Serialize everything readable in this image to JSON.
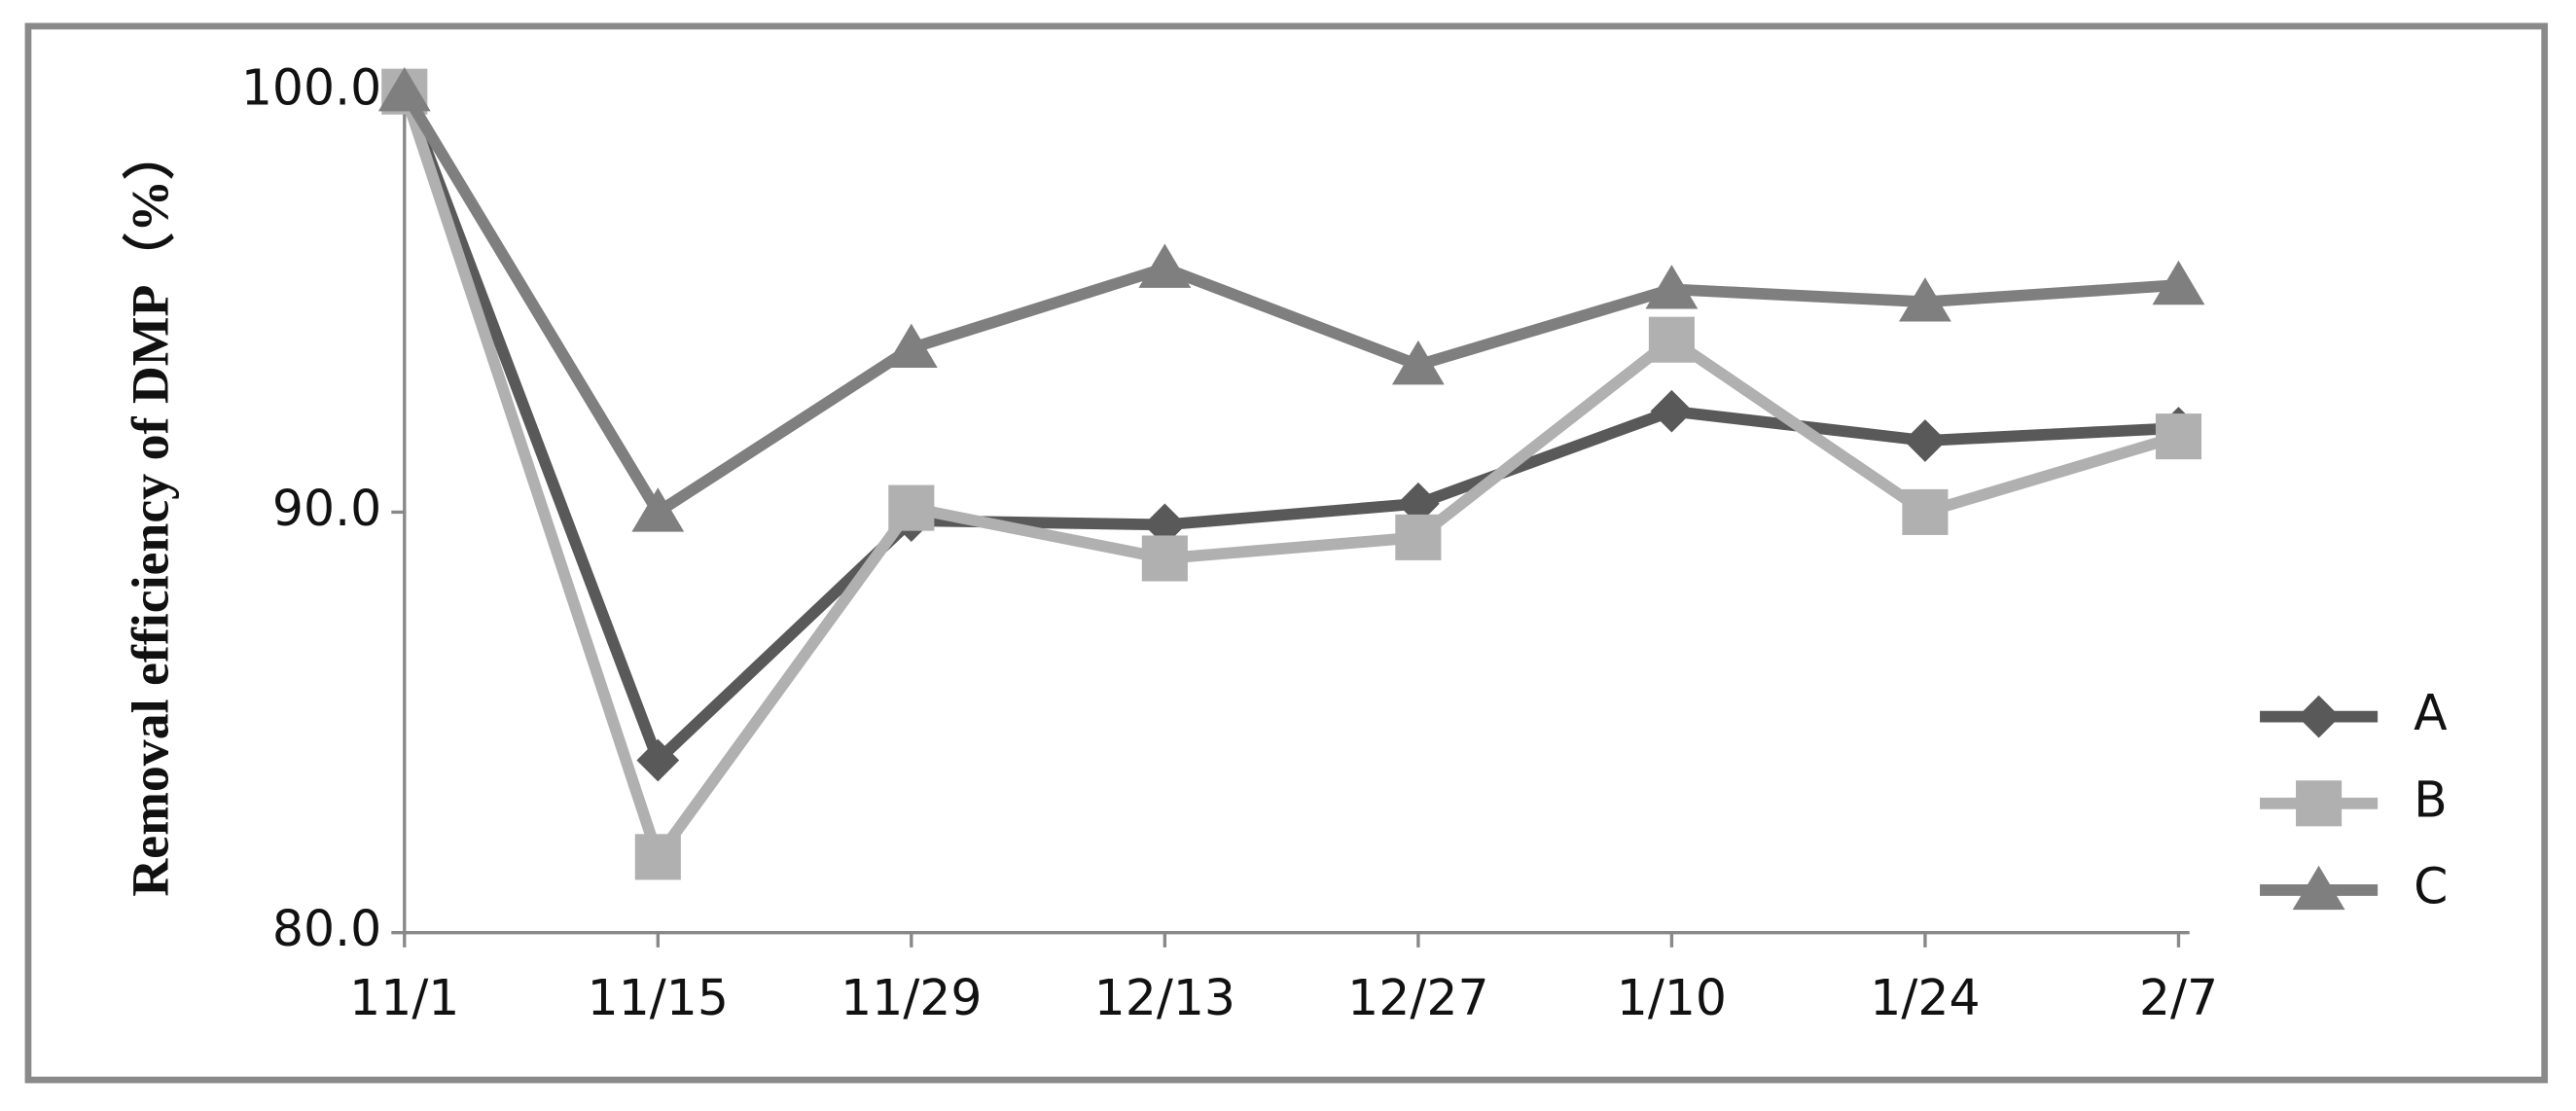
{
  "chart_data": {
    "type": "line",
    "y_label": "Removal efficiency of DMP（%）",
    "categories": [
      "11/1",
      "11/15",
      "11/29",
      "12/13",
      "12/27",
      "1/10",
      "1/24",
      "2/7"
    ],
    "series": [
      {
        "name": "A",
        "color": "#595959",
        "marker": "diamond",
        "values": [
          100,
          84.1,
          89.8,
          89.7,
          90.2,
          92.4,
          91.7,
          92.0
        ]
      },
      {
        "name": "B",
        "color": "#b0b0b0",
        "marker": "square",
        "values": [
          100,
          81.8,
          90.1,
          88.9,
          89.4,
          94.1,
          90.0,
          91.8
        ]
      },
      {
        "name": "C",
        "color": "#7f7f7f",
        "marker": "triangle",
        "values": [
          100,
          90.0,
          93.9,
          95.8,
          93.5,
          95.3,
          95.0,
          95.4
        ]
      }
    ],
    "ylim": [
      80,
      100
    ],
    "yticks": [
      {
        "value": 80,
        "label": "80.0"
      },
      {
        "value": 90,
        "label": "90.0"
      },
      {
        "value": 100,
        "label": "100.0"
      }
    ],
    "legend": "right"
  }
}
